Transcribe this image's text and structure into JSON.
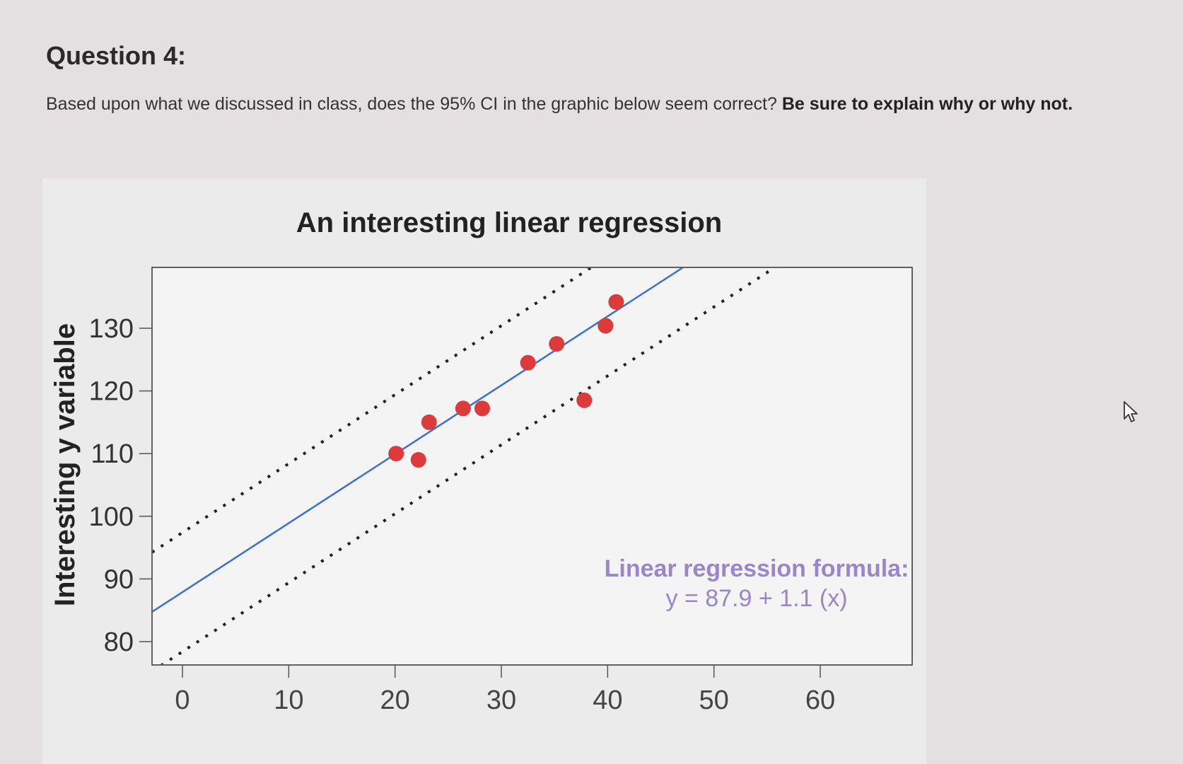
{
  "question": {
    "title": "Question 4:",
    "text": "Based upon what we discussed in class, does the 95% CI in the graphic below seem correct?",
    "bold_text": "Be sure to explain why or why not."
  },
  "chart_data": {
    "type": "scatter",
    "title": "An interesting linear regression",
    "xlabel": "",
    "ylabel": "Interesting y variable",
    "xlim": [
      0,
      60
    ],
    "ylim": [
      80,
      130
    ],
    "xticks": [
      0,
      10,
      20,
      30,
      40,
      50,
      60
    ],
    "yticks": [
      80,
      90,
      100,
      110,
      120,
      130
    ],
    "grid": false,
    "points": [
      {
        "x": 20.1,
        "y": 110.0
      },
      {
        "x": 22.2,
        "y": 109.0
      },
      {
        "x": 23.2,
        "y": 115.0
      },
      {
        "x": 26.4,
        "y": 117.2
      },
      {
        "x": 28.2,
        "y": 117.2
      },
      {
        "x": 32.5,
        "y": 124.5
      },
      {
        "x": 35.2,
        "y": 127.5
      },
      {
        "x": 37.8,
        "y": 118.5
      },
      {
        "x": 39.8,
        "y": 130.4
      },
      {
        "x": 40.8,
        "y": 134.2
      }
    ],
    "regression": {
      "intercept": 87.9,
      "slope": 1.1
    },
    "ci_band": {
      "upper_offset": 9.5,
      "lower_offset": -9.5
    },
    "annotation": {
      "line1": "Linear regression formula:",
      "line2": "y = 87.9 + 1.1 (x)"
    },
    "colors": {
      "points": "#dd3b3b",
      "regression_line": "#3b6fd6",
      "ci_lines": "#222222",
      "annotation": "#9a86c8"
    }
  }
}
